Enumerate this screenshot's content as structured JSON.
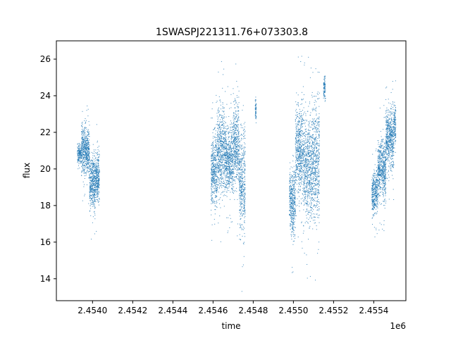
{
  "chart_data": {
    "type": "scatter",
    "title": "1SWASPJ221311.76+073303.8",
    "xlabel": "time",
    "ylabel": "flux",
    "x_offset_label": "1e6",
    "xlim": [
      2453820,
      2455560
    ],
    "ylim": [
      12.8,
      27.0
    ],
    "x_ticks": [
      2.454,
      2.4542,
      2.4544,
      2.4546,
      2.4548,
      2.455,
      2.4552,
      2.4554
    ],
    "x_tick_labels": [
      "2.4540",
      "2.4542",
      "2.4544",
      "2.4546",
      "2.4548",
      "2.4550",
      "2.4552",
      "2.4554"
    ],
    "y_ticks": [
      14,
      16,
      18,
      20,
      22,
      24,
      26
    ],
    "y_tick_labels": [
      "14",
      "16",
      "18",
      "20",
      "22",
      "24",
      "26"
    ],
    "grid": false,
    "marker_color": "#1f77b4",
    "series": [
      {
        "clusters": [
          {
            "x_range": [
              2453925,
              2453945
            ],
            "y_center": 20.8,
            "y_spread": 0.5
          },
          {
            "x_range": [
              2453945,
              2453985
            ],
            "y_center": 21.0,
            "y_spread": 1.2
          },
          {
            "x_range": [
              2453985,
              2454015
            ],
            "y_center": 19.3,
            "y_spread": 1.3
          },
          {
            "x_range": [
              2454015,
              2454035
            ],
            "y_center": 19.5,
            "y_spread": 1.2
          },
          {
            "x_range": [
              2454590,
              2454620
            ],
            "y_center": 19.8,
            "y_spread": 1.8
          },
          {
            "x_range": [
              2454620,
              2454660
            ],
            "y_center": 21.0,
            "y_spread": 2.0
          },
          {
            "x_range": [
              2454660,
              2454700
            ],
            "y_center": 20.5,
            "y_spread": 1.6
          },
          {
            "x_range": [
              2454700,
              2454730
            ],
            "y_center": 21.3,
            "y_spread": 2.0
          },
          {
            "x_range": [
              2454730,
              2454760
            ],
            "y_center": 19.3,
            "y_spread": 2.5
          },
          {
            "x_range": [
              2454810,
              2454815
            ],
            "y_center": 23.3,
            "y_spread": 0.5
          },
          {
            "x_range": [
              2454980,
              2455010
            ],
            "y_center": 18.3,
            "y_spread": 1.6
          },
          {
            "x_range": [
              2455010,
              2455050
            ],
            "y_center": 21.0,
            "y_spread": 2.2
          },
          {
            "x_range": [
              2455050,
              2455090
            ],
            "y_center": 20.0,
            "y_spread": 2.5
          },
          {
            "x_range": [
              2455090,
              2455130
            ],
            "y_center": 20.5,
            "y_spread": 3.0
          },
          {
            "x_range": [
              2455150,
              2455160
            ],
            "y_center": 24.4,
            "y_spread": 0.6
          },
          {
            "x_range": [
              2455390,
              2455420
            ],
            "y_center": 18.7,
            "y_spread": 1.0
          },
          {
            "x_range": [
              2455420,
              2455460
            ],
            "y_center": 20.0,
            "y_spread": 1.4
          },
          {
            "x_range": [
              2455460,
              2455500
            ],
            "y_center": 21.6,
            "y_spread": 1.4
          },
          {
            "x_range": [
              2455500,
              2455510
            ],
            "y_center": 22.5,
            "y_spread": 1.0
          }
        ]
      }
    ]
  }
}
